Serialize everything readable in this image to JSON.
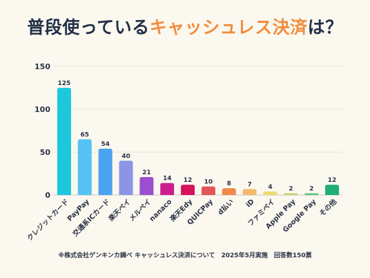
{
  "title": {
    "part1": "普段使っている",
    "part2": "キャッシュレス決済",
    "part3": "は？"
  },
  "footnote": "※株式会社ゲンキンカ調べ キャッシュレス決済について　2025年5月実施　回答数150票",
  "chart_data": {
    "type": "bar",
    "title": "普段使っているキャッシュレス決済は？",
    "categories": [
      "クレジットカード",
      "PayPay",
      "交通系ICカード",
      "楽天ペイ",
      "メルペイ",
      "nanaco",
      "楽天Edy",
      "QUICPay",
      "d払い",
      "iD",
      "ファミペイ",
      "Apple Pay",
      "Google Pay",
      "その他"
    ],
    "values": [
      125,
      65,
      54,
      40,
      21,
      14,
      12,
      10,
      8,
      7,
      4,
      2,
      2,
      12
    ],
    "data_labels": [
      "125",
      "65",
      "54",
      "40",
      "21",
      "14",
      "12",
      "10",
      "8",
      "7",
      "4",
      "2",
      "2",
      "12"
    ],
    "ylim": [
      0,
      150
    ],
    "yticks": [
      0,
      50,
      100,
      150
    ],
    "ytick_labels": [
      "0",
      "50",
      "100",
      "150"
    ],
    "grid": true,
    "legend": "none",
    "colors": [
      "#1dc8dc",
      "#56c2f5",
      "#4aa3f0",
      "#8b95e8",
      "#9b4fd0",
      "#cc1f8f",
      "#d4135c",
      "#e05757",
      "#ef8a4a",
      "#f4b86a",
      "#efd96a",
      "#bfd46a",
      "#5cc27a",
      "#1fae7a"
    ],
    "xlabel": "",
    "ylabel": ""
  }
}
